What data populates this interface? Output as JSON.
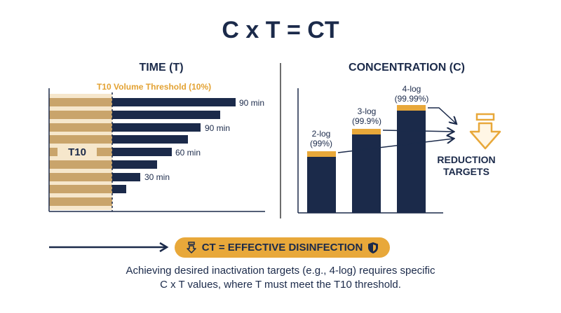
{
  "title": "C x T = CT",
  "time_panel": {
    "title": "TIME (T)",
    "threshold_label": "T10 Volume Threshold (10%)",
    "t10_label": "T10",
    "time_labels": [
      "90 min",
      "90 min",
      "60 min",
      "30 min"
    ]
  },
  "concentration_panel": {
    "title": "CONCENTRATION (C)",
    "bars": [
      {
        "log": "2-log",
        "pct": "(99%)"
      },
      {
        "log": "3-log",
        "pct": "(99.9%)"
      },
      {
        "log": "4-log",
        "pct": "(99.99%)"
      }
    ],
    "reduction_line1": "REDUCTION",
    "reduction_line2": "TARGETS"
  },
  "badge": {
    "text": "CT = EFFECTIVE DISINFECTION"
  },
  "caption": {
    "line1": "Achieving desired inactivation targets (e.g., 4-log) requires specific",
    "line2": "C x T values, where T must meet the T10 threshold."
  },
  "colors": {
    "navy": "#1b2a4a",
    "gold": "#e8a83a",
    "tan": "#c9a46b",
    "light_tan": "#f6e7cc"
  },
  "icons": [
    "down-arrow-icon",
    "shield-icon",
    "arrow-right-icon"
  ]
}
